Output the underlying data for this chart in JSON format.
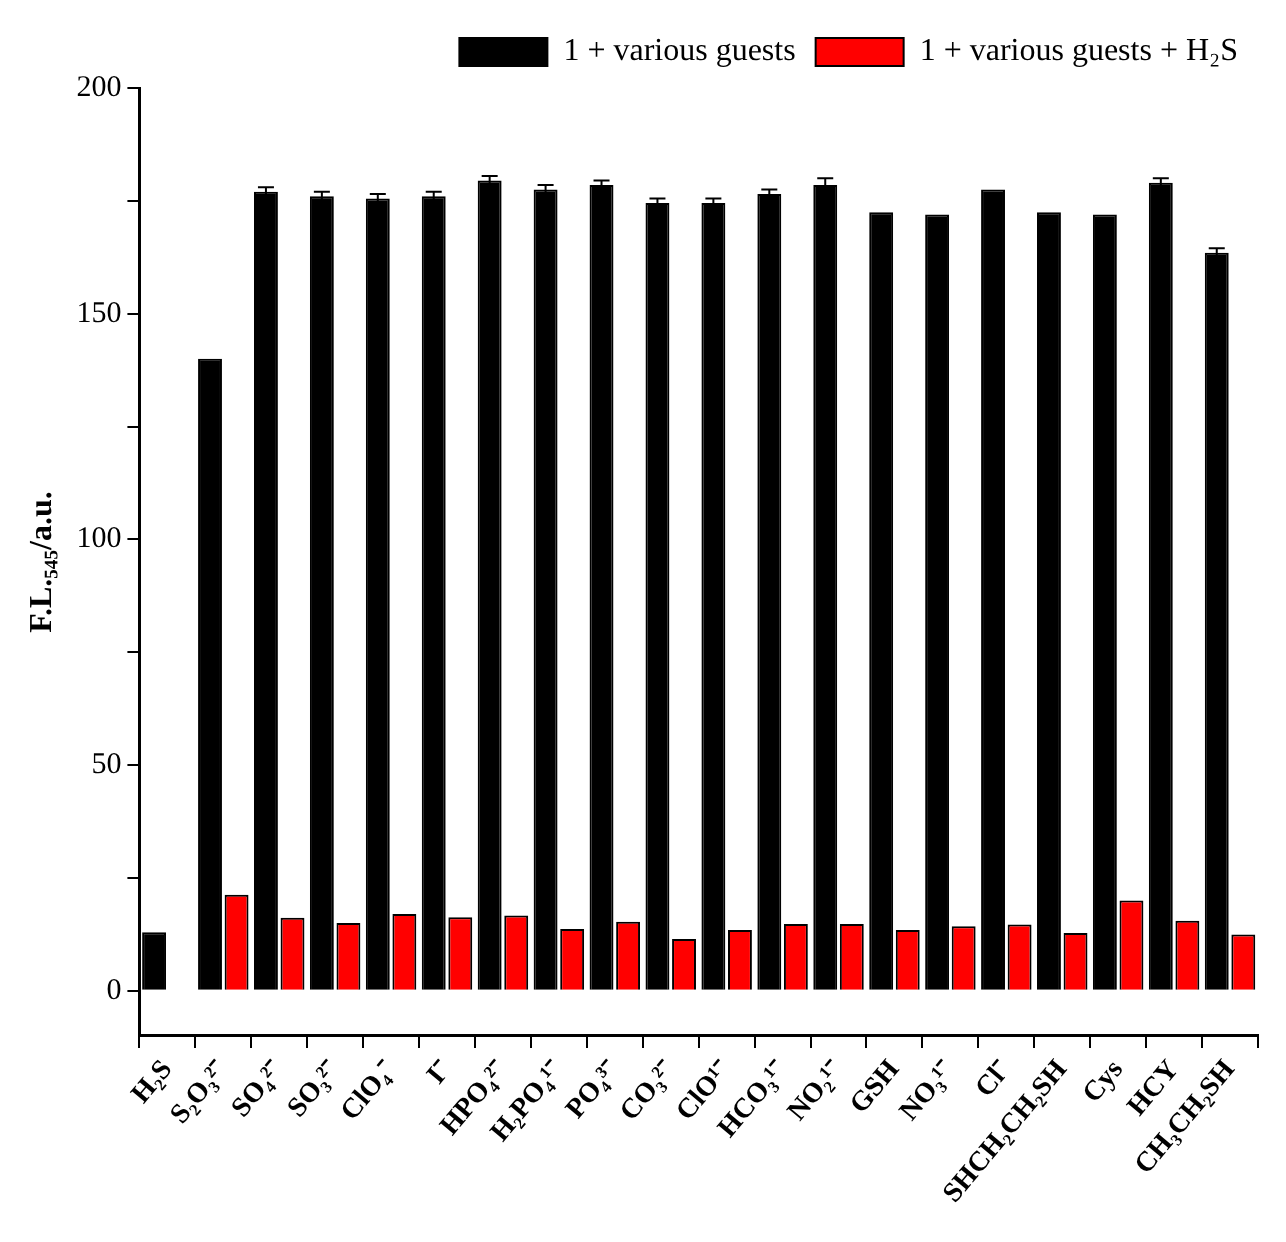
{
  "chart_data": {
    "type": "bar",
    "ylabel": "F.L.₅₄₅/a.u.",
    "categories": [
      "H₂S",
      "S₂O₃²⁻",
      "SO₄²⁻",
      "SO₃²⁻",
      "ClO₄⁻",
      "I⁻",
      "HPO₄²⁻",
      "H₂PO₄¹⁻",
      "PO₄³⁻",
      "CO₃²⁻",
      "ClO¹⁻",
      "HCO₃¹⁻",
      "NO₂¹⁻",
      "GSH",
      "NO₃¹⁻",
      "Cl⁻",
      "SHCH₂CH₂SH",
      "Cys",
      "HCY",
      "CH₃CH₂SH"
    ],
    "series": [
      {
        "name": "1 + various guests",
        "color": "#000000",
        "values": [
          13,
          140,
          177,
          176,
          175.5,
          176,
          179.5,
          177.5,
          178.5,
          174.5,
          174.5,
          176.5,
          178.5,
          172.5,
          172,
          177.5,
          172.5,
          172,
          179,
          163.5
        ],
        "errors": [
          null,
          null,
          1,
          1,
          1,
          1,
          1,
          1,
          1,
          1,
          1,
          1,
          1.5,
          null,
          null,
          null,
          null,
          null,
          1,
          1
        ]
      },
      {
        "name": "1 + various guests + H₂S",
        "color": "#ff0000",
        "values": [
          null,
          21.3,
          16.2,
          15,
          17,
          16.3,
          16.7,
          13.7,
          15.3,
          11.5,
          13.5,
          14.8,
          14.8,
          13.5,
          14.3,
          14.7,
          12.8,
          20,
          15.5,
          12.5
        ]
      }
    ],
    "ylim": [
      -10,
      200
    ],
    "yticks": [
      {
        "value": 0,
        "label": "0"
      },
      {
        "value": 25,
        "label": null
      },
      {
        "value": 50,
        "label": "50"
      },
      {
        "value": 75,
        "label": null
      },
      {
        "value": 100,
        "label": "100"
      },
      {
        "value": 125,
        "label": null
      },
      {
        "value": 150,
        "label": "150"
      },
      {
        "value": 175,
        "label": null
      },
      {
        "value": 200,
        "label": "200"
      }
    ],
    "grid": false,
    "legend": "top right"
  }
}
